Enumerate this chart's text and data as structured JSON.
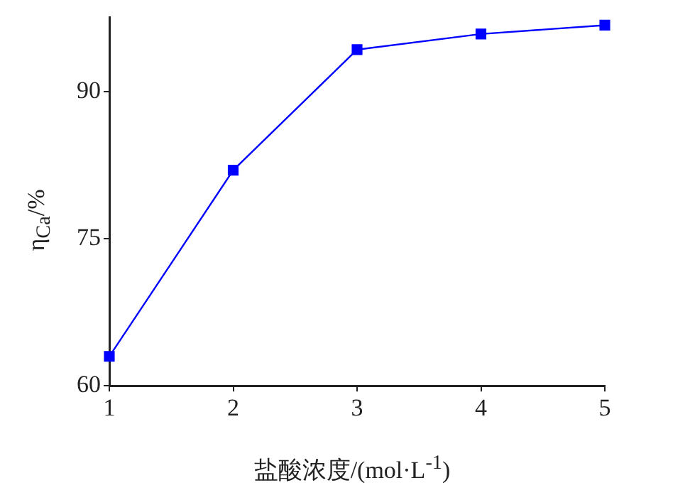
{
  "chart_data": {
    "type": "line",
    "xlabel": "盐酸浓度/(mol·L$^{-1}$)",
    "ylabel": "η$_{Ca}$/%",
    "x": [
      1,
      2,
      3,
      4,
      5
    ],
    "series": [
      {
        "color": "#0000ff",
        "values": [
          63.0,
          82.0,
          94.3,
          95.9,
          96.8
        ]
      }
    ],
    "xlim": [
      1,
      5
    ],
    "xticks": [
      1,
      2,
      3,
      4,
      5
    ],
    "ylim": [
      60,
      97.6
    ],
    "yticks": [
      60,
      75,
      90
    ],
    "grid": false,
    "legend": false,
    "marker": "square",
    "line_style": "solid"
  }
}
